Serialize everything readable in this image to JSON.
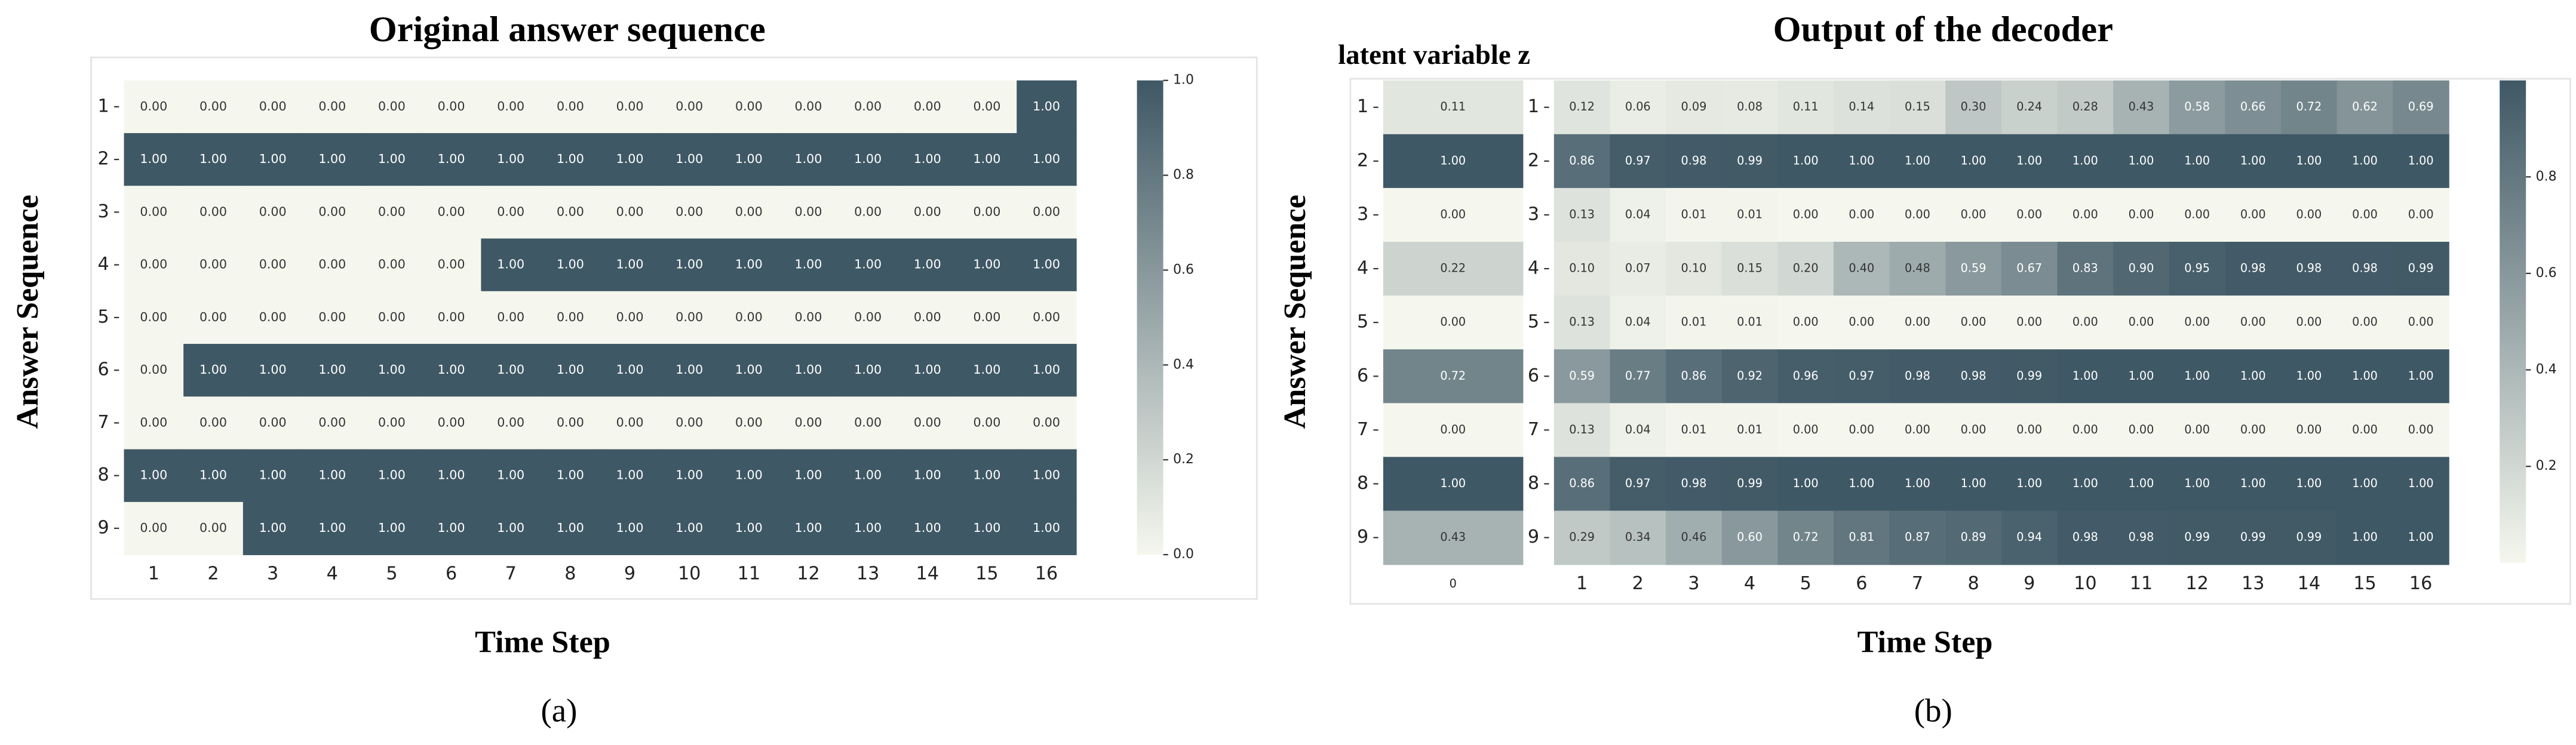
{
  "chart_data": [
    {
      "type": "heatmap",
      "title": "Original answer sequence",
      "xlabel": "Time Step",
      "ylabel": "Answer Sequence",
      "caption": "(a)",
      "rows": [
        1,
        2,
        3,
        4,
        5,
        6,
        7,
        8,
        9
      ],
      "columns": [
        1,
        2,
        3,
        4,
        5,
        6,
        7,
        8,
        9,
        10,
        11,
        12,
        13,
        14,
        15,
        16
      ],
      "values": [
        [
          0,
          0,
          0,
          0,
          0,
          0,
          0,
          0,
          0,
          0,
          0,
          0,
          0,
          0,
          0,
          1
        ],
        [
          1,
          1,
          1,
          1,
          1,
          1,
          1,
          1,
          1,
          1,
          1,
          1,
          1,
          1,
          1,
          1
        ],
        [
          0,
          0,
          0,
          0,
          0,
          0,
          0,
          0,
          0,
          0,
          0,
          0,
          0,
          0,
          0,
          0
        ],
        [
          0,
          0,
          0,
          0,
          0,
          0,
          1,
          1,
          1,
          1,
          1,
          1,
          1,
          1,
          1,
          1
        ],
        [
          0,
          0,
          0,
          0,
          0,
          0,
          0,
          0,
          0,
          0,
          0,
          0,
          0,
          0,
          0,
          0
        ],
        [
          0,
          1,
          1,
          1,
          1,
          1,
          1,
          1,
          1,
          1,
          1,
          1,
          1,
          1,
          1,
          1
        ],
        [
          0,
          0,
          0,
          0,
          0,
          0,
          0,
          0,
          0,
          0,
          0,
          0,
          0,
          0,
          0,
          0
        ],
        [
          1,
          1,
          1,
          1,
          1,
          1,
          1,
          1,
          1,
          1,
          1,
          1,
          1,
          1,
          1,
          1
        ],
        [
          0,
          0,
          1,
          1,
          1,
          1,
          1,
          1,
          1,
          1,
          1,
          1,
          1,
          1,
          1,
          1
        ]
      ],
      "value_labels": [
        [
          "0.00",
          "0.00",
          "0.00",
          "0.00",
          "0.00",
          "0.00",
          "0.00",
          "0.00",
          "0.00",
          "0.00",
          "0.00",
          "0.00",
          "0.00",
          "0.00",
          "0.00",
          "1.00"
        ],
        [
          "1.00",
          "1.00",
          "1.00",
          "1.00",
          "1.00",
          "1.00",
          "1.00",
          "1.00",
          "1.00",
          "1.00",
          "1.00",
          "1.00",
          "1.00",
          "1.00",
          "1.00",
          "1.00"
        ],
        [
          "0.00",
          "0.00",
          "0.00",
          "0.00",
          "0.00",
          "0.00",
          "0.00",
          "0.00",
          "0.00",
          "0.00",
          "0.00",
          "0.00",
          "0.00",
          "0.00",
          "0.00",
          "0.00"
        ],
        [
          "0.00",
          "0.00",
          "0.00",
          "0.00",
          "0.00",
          "0.00",
          "1.00",
          "1.00",
          "1.00",
          "1.00",
          "1.00",
          "1.00",
          "1.00",
          "1.00",
          "1.00",
          "1.00"
        ],
        [
          "0.00",
          "0.00",
          "0.00",
          "0.00",
          "0.00",
          "0.00",
          "0.00",
          "0.00",
          "0.00",
          "0.00",
          "0.00",
          "0.00",
          "0.00",
          "0.00",
          "0.00",
          "0.00"
        ],
        [
          "0.00",
          "1.00",
          "1.00",
          "1.00",
          "1.00",
          "1.00",
          "1.00",
          "1.00",
          "1.00",
          "1.00",
          "1.00",
          "1.00",
          "1.00",
          "1.00",
          "1.00",
          "1.00"
        ],
        [
          "0.00",
          "0.00",
          "0.00",
          "0.00",
          "0.00",
          "0.00",
          "0.00",
          "0.00",
          "0.00",
          "0.00",
          "0.00",
          "0.00",
          "0.00",
          "0.00",
          "0.00",
          "0.00"
        ],
        [
          "1.00",
          "1.00",
          "1.00",
          "1.00",
          "1.00",
          "1.00",
          "1.00",
          "1.00",
          "1.00",
          "1.00",
          "1.00",
          "1.00",
          "1.00",
          "1.00",
          "1.00",
          "1.00"
        ],
        [
          "0.00",
          "0.00",
          "1.00",
          "1.00",
          "1.00",
          "1.00",
          "1.00",
          "1.00",
          "1.00",
          "1.00",
          "1.00",
          "1.00",
          "1.00",
          "1.00",
          "1.00",
          "1.00"
        ]
      ],
      "clim": [
        0,
        1
      ],
      "cticks": [
        {
          "value": 0,
          "label": "0.0"
        },
        0.2,
        0.4,
        0.6,
        0.8,
        {
          "value": 1,
          "label": "1.0"
        }
      ],
      "cmap": [
        "#f5f7ee",
        "#3f5865"
      ]
    },
    {
      "type": "heatmap",
      "title": "Output of the decoder",
      "xlabel": "Time Step",
      "ylabel": "Answer Sequence",
      "caption": "(b)",
      "rows": [
        1,
        2,
        3,
        4,
        5,
        6,
        7,
        8,
        9
      ],
      "latent": {
        "title": "latent variable z",
        "columns": [
          0
        ],
        "values": [
          [
            0.11
          ],
          [
            1
          ],
          [
            0
          ],
          [
            0.22
          ],
          [
            0
          ],
          [
            0.72
          ],
          [
            0
          ],
          [
            1
          ],
          [
            0.43
          ]
        ],
        "value_labels": [
          [
            "0.11"
          ],
          [
            "1.00"
          ],
          [
            "0.00"
          ],
          [
            "0.22"
          ],
          [
            "0.00"
          ],
          [
            "0.72"
          ],
          [
            "0.00"
          ],
          [
            "1.00"
          ],
          [
            "0.43"
          ]
        ]
      },
      "columns": [
        1,
        2,
        3,
        4,
        5,
        6,
        7,
        8,
        9,
        10,
        11,
        12,
        13,
        14,
        15,
        16
      ],
      "values": [
        [
          0.12,
          0.06,
          0.09,
          0.08,
          0.11,
          0.14,
          0.15,
          0.3,
          0.24,
          0.28,
          0.43,
          0.58,
          0.66,
          0.72,
          0.62,
          0.69
        ],
        [
          0.86,
          0.97,
          0.98,
          0.99,
          1,
          1,
          1,
          1,
          1,
          1,
          1,
          1,
          1,
          1,
          1,
          1
        ],
        [
          0.13,
          0.04,
          0.01,
          0.01,
          0,
          0,
          0,
          0,
          0,
          0,
          0,
          0,
          0,
          0,
          0,
          0
        ],
        [
          0.1,
          0.07,
          0.1,
          0.15,
          0.2,
          0.4,
          0.48,
          0.59,
          0.67,
          0.83,
          0.9,
          0.95,
          0.98,
          0.98,
          0.98,
          0.99
        ],
        [
          0.13,
          0.04,
          0.01,
          0.01,
          0,
          0,
          0,
          0,
          0,
          0,
          0,
          0,
          0,
          0,
          0,
          0
        ],
        [
          0.59,
          0.77,
          0.86,
          0.92,
          0.96,
          0.97,
          0.98,
          0.98,
          0.99,
          1,
          1,
          1,
          1,
          1,
          1,
          1
        ],
        [
          0.13,
          0.04,
          0.01,
          0.01,
          0,
          0,
          0,
          0,
          0,
          0,
          0,
          0,
          0,
          0,
          0,
          0
        ],
        [
          0.86,
          0.97,
          0.98,
          0.99,
          1,
          1,
          1,
          1,
          1,
          1,
          1,
          1,
          1,
          1,
          1,
          1
        ],
        [
          0.29,
          0.34,
          0.46,
          0.6,
          0.72,
          0.81,
          0.87,
          0.89,
          0.94,
          0.98,
          0.98,
          0.99,
          0.99,
          0.99,
          1,
          1
        ]
      ],
      "value_labels": [
        [
          "0.12",
          "0.06",
          "0.09",
          "0.08",
          "0.11",
          "0.14",
          "0.15",
          "0.30",
          "0.24",
          "0.28",
          "0.43",
          "0.58",
          "0.66",
          "0.72",
          "0.62",
          "0.69"
        ],
        [
          "0.86",
          "0.97",
          "0.98",
          "0.99",
          "1.00",
          "1.00",
          "1.00",
          "1.00",
          "1.00",
          "1.00",
          "1.00",
          "1.00",
          "1.00",
          "1.00",
          "1.00",
          "1.00"
        ],
        [
          "0.13",
          "0.04",
          "0.01",
          "0.01",
          "0.00",
          "0.00",
          "0.00",
          "0.00",
          "0.00",
          "0.00",
          "0.00",
          "0.00",
          "0.00",
          "0.00",
          "0.00",
          "0.00"
        ],
        [
          "0.10",
          "0.07",
          "0.10",
          "0.15",
          "0.20",
          "0.40",
          "0.48",
          "0.59",
          "0.67",
          "0.83",
          "0.90",
          "0.95",
          "0.98",
          "0.98",
          "0.98",
          "0.99"
        ],
        [
          "0.13",
          "0.04",
          "0.01",
          "0.01",
          "0.00",
          "0.00",
          "0.00",
          "0.00",
          "0.00",
          "0.00",
          "0.00",
          "0.00",
          "0.00",
          "0.00",
          "0.00",
          "0.00"
        ],
        [
          "0.59",
          "0.77",
          "0.86",
          "0.92",
          "0.96",
          "0.97",
          "0.98",
          "0.98",
          "0.99",
          "1.00",
          "1.00",
          "1.00",
          "1.00",
          "1.00",
          "1.00",
          "1.00"
        ],
        [
          "0.13",
          "0.04",
          "0.01",
          "0.01",
          "0.00",
          "0.00",
          "0.00",
          "0.00",
          "0.00",
          "0.00",
          "0.00",
          "0.00",
          "0.00",
          "0.00",
          "0.00",
          "0.00"
        ],
        [
          "0.86",
          "0.97",
          "0.98",
          "0.99",
          "1.00",
          "1.00",
          "1.00",
          "1.00",
          "1.00",
          "1.00",
          "1.00",
          "1.00",
          "1.00",
          "1.00",
          "1.00",
          "1.00"
        ],
        [
          "0.29",
          "0.34",
          "0.46",
          "0.60",
          "0.72",
          "0.81",
          "0.87",
          "0.89",
          "0.94",
          "0.98",
          "0.98",
          "0.99",
          "0.99",
          "0.99",
          "1.00",
          "1.00"
        ]
      ],
      "clim": [
        0,
        1
      ],
      "cticks": [
        0.2,
        0.4,
        0.6,
        0.8
      ],
      "cmap": [
        "#f5f7ee",
        "#3f5865"
      ]
    }
  ]
}
